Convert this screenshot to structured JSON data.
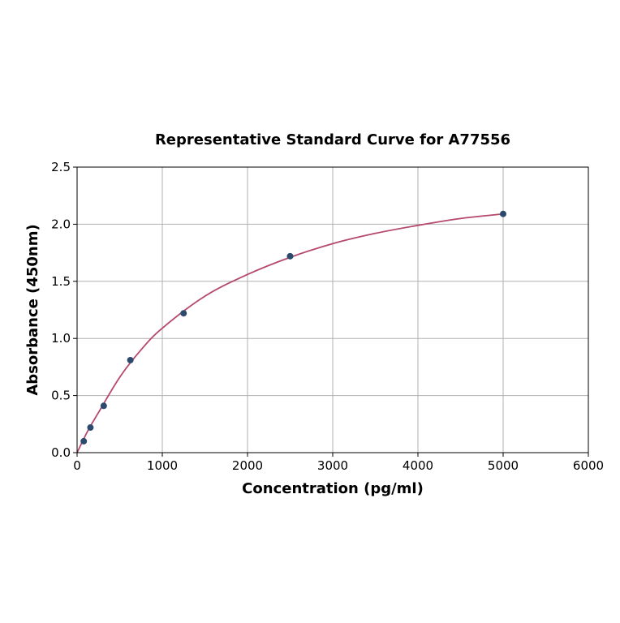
{
  "chart_data": {
    "type": "scatter",
    "title": "Representative Standard Curve for A77556",
    "xlabel": "Concentration (pg/ml)",
    "ylabel": "Absorbance (450nm)",
    "xlim": [
      0,
      6000
    ],
    "ylim": [
      0,
      2.5
    ],
    "xticks": [
      "0",
      "1000",
      "2000",
      "3000",
      "4000",
      "5000",
      "6000"
    ],
    "yticks": [
      "0.0",
      "0.5",
      "1.0",
      "1.5",
      "2.0",
      "2.5"
    ],
    "grid": true,
    "points": {
      "x": [
        78.125,
        156.25,
        312.5,
        625,
        1250,
        2500,
        5000
      ],
      "y": [
        0.1,
        0.22,
        0.41,
        0.81,
        1.22,
        1.72,
        2.09
      ]
    },
    "fit_curve": {
      "x": [
        0,
        125,
        250,
        500,
        750,
        1000,
        1500,
        2000,
        2500,
        3000,
        3500,
        4000,
        4500,
        5000
      ],
      "y": [
        0,
        0.19,
        0.35,
        0.66,
        0.9,
        1.09,
        1.37,
        1.56,
        1.71,
        1.83,
        1.92,
        1.99,
        2.05,
        2.09
      ]
    },
    "colors": {
      "points": "#2c4a6e",
      "curve": "#b5486c",
      "grid": "#b0b0b0"
    }
  }
}
